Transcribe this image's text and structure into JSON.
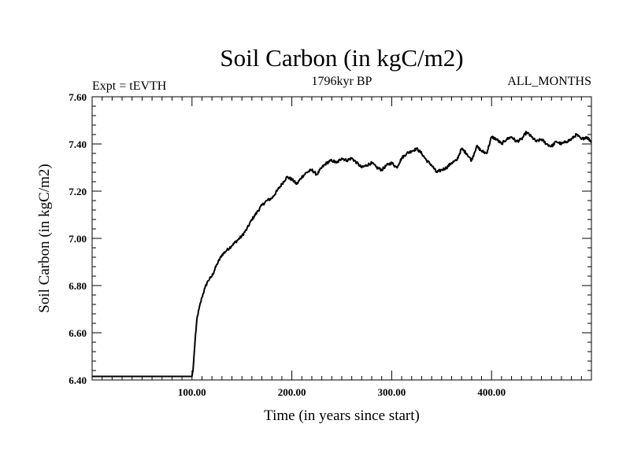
{
  "chart_data": {
    "type": "line",
    "title": "Soil Carbon (in kgC/m2)",
    "subtitle_left": "Expt = tEVTH",
    "subtitle_center": "1796kyr BP",
    "subtitle_right": "ALL_MONTHS",
    "xlabel": "Time (in years since start)",
    "ylabel": "Soil Carbon (in kgC/m2)",
    "xlim": [
      0,
      500
    ],
    "ylim": [
      6.4,
      7.6
    ],
    "x_major_ticks": [
      100,
      200,
      300,
      400
    ],
    "x_tick_labels": [
      "100.00",
      "200.00",
      "300.00",
      "400.00"
    ],
    "y_major_ticks": [
      6.4,
      6.6,
      6.8,
      7.0,
      7.2,
      7.4,
      7.6
    ],
    "y_tick_labels": [
      "6.40",
      "6.60",
      "6.80",
      "7.00",
      "7.20",
      "7.40",
      "7.60"
    ],
    "series": [
      {
        "name": "Soil Carbon",
        "x": [
          0,
          100,
          101,
          102,
          103,
          104,
          105,
          107,
          110,
          113,
          116,
          120,
          125,
          130,
          135,
          140,
          145,
          150,
          155,
          160,
          165,
          170,
          175,
          180,
          185,
          190,
          195,
          200,
          205,
          210,
          215,
          220,
          225,
          230,
          235,
          240,
          245,
          250,
          255,
          260,
          265,
          270,
          275,
          280,
          285,
          290,
          295,
          300,
          305,
          310,
          315,
          320,
          325,
          330,
          335,
          340,
          345,
          350,
          355,
          360,
          365,
          370,
          375,
          380,
          385,
          390,
          395,
          400,
          405,
          410,
          415,
          420,
          425,
          430,
          435,
          440,
          445,
          450,
          455,
          460,
          465,
          470,
          475,
          480,
          485,
          490,
          495,
          500
        ],
        "values": [
          6.415,
          6.415,
          6.44,
          6.5,
          6.56,
          6.61,
          6.66,
          6.7,
          6.75,
          6.79,
          6.82,
          6.84,
          6.89,
          6.93,
          6.95,
          6.97,
          6.99,
          7.01,
          7.04,
          7.08,
          7.11,
          7.14,
          7.16,
          7.17,
          7.2,
          7.23,
          7.26,
          7.25,
          7.23,
          7.26,
          7.28,
          7.29,
          7.27,
          7.3,
          7.32,
          7.33,
          7.32,
          7.34,
          7.33,
          7.34,
          7.32,
          7.3,
          7.31,
          7.32,
          7.3,
          7.29,
          7.31,
          7.32,
          7.3,
          7.34,
          7.36,
          7.37,
          7.38,
          7.36,
          7.33,
          7.31,
          7.28,
          7.29,
          7.3,
          7.32,
          7.33,
          7.38,
          7.36,
          7.33,
          7.39,
          7.37,
          7.36,
          7.43,
          7.42,
          7.4,
          7.42,
          7.43,
          7.41,
          7.42,
          7.45,
          7.43,
          7.41,
          7.42,
          7.4,
          7.39,
          7.41,
          7.4,
          7.41,
          7.42,
          7.44,
          7.42,
          7.43,
          7.41
        ]
      }
    ]
  }
}
